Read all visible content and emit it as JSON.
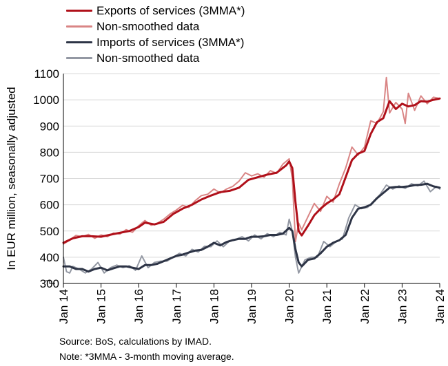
{
  "chart_data": {
    "type": "line",
    "ylabel": "In EUR million, seasonally adjusted",
    "ylim": [
      300,
      1100
    ],
    "yticks": [
      300,
      400,
      500,
      600,
      700,
      800,
      900,
      1000,
      1100
    ],
    "xticks": [
      "Jan 14",
      "Jan 15",
      "Jan 16",
      "Jan 17",
      "Jan 18",
      "Jan 19",
      "Jan 20",
      "Jan 21",
      "Jan 22",
      "Jan 23",
      "Jan 24"
    ],
    "x_start": "Jan 14",
    "x_end": "Jan 24",
    "grid": true,
    "legend_position": "top-left",
    "series": [
      {
        "name": "Exports of services (3MMA*)",
        "color": "#b0101a",
        "points": [
          [
            "2014-01",
            455
          ],
          [
            "2014-04",
            472
          ],
          [
            "2014-07",
            480
          ],
          [
            "2014-10",
            480
          ],
          [
            "2015-01",
            478
          ],
          [
            "2015-04",
            486
          ],
          [
            "2015-07",
            493
          ],
          [
            "2015-10",
            500
          ],
          [
            "2016-01",
            515
          ],
          [
            "2016-03",
            532
          ],
          [
            "2016-06",
            525
          ],
          [
            "2016-09",
            535
          ],
          [
            "2016-12",
            565
          ],
          [
            "2017-03",
            585
          ],
          [
            "2017-06",
            600
          ],
          [
            "2017-09",
            620
          ],
          [
            "2017-12",
            635
          ],
          [
            "2018-03",
            648
          ],
          [
            "2018-06",
            653
          ],
          [
            "2018-09",
            665
          ],
          [
            "2018-12",
            695
          ],
          [
            "2019-03",
            705
          ],
          [
            "2019-06",
            715
          ],
          [
            "2019-09",
            722
          ],
          [
            "2019-12",
            750
          ],
          [
            "2020-01",
            765
          ],
          [
            "2020-02",
            740
          ],
          [
            "2020-03",
            610
          ],
          [
            "2020-04",
            500
          ],
          [
            "2020-05",
            483
          ],
          [
            "2020-07",
            520
          ],
          [
            "2020-09",
            560
          ],
          [
            "2020-11",
            585
          ],
          [
            "2021-01",
            605
          ],
          [
            "2021-03",
            620
          ],
          [
            "2021-05",
            640
          ],
          [
            "2021-07",
            705
          ],
          [
            "2021-09",
            770
          ],
          [
            "2021-11",
            795
          ],
          [
            "2022-01",
            805
          ],
          [
            "2022-03",
            870
          ],
          [
            "2022-05",
            915
          ],
          [
            "2022-07",
            930
          ],
          [
            "2022-09",
            995
          ],
          [
            "2022-11",
            965
          ],
          [
            "2023-01",
            985
          ],
          [
            "2023-03",
            975
          ],
          [
            "2023-05",
            980
          ],
          [
            "2023-07",
            995
          ],
          [
            "2023-09",
            993
          ],
          [
            "2023-11",
            1000
          ],
          [
            "2024-01",
            1005
          ]
        ]
      },
      {
        "name": "Non-smoothed data",
        "color": "#d98585",
        "points": [
          [
            "2014-01",
            450
          ],
          [
            "2014-03",
            465
          ],
          [
            "2014-05",
            483
          ],
          [
            "2014-07",
            478
          ],
          [
            "2014-09",
            487
          ],
          [
            "2014-11",
            472
          ],
          [
            "2015-01",
            485
          ],
          [
            "2015-03",
            478
          ],
          [
            "2015-05",
            492
          ],
          [
            "2015-07",
            488
          ],
          [
            "2015-09",
            505
          ],
          [
            "2015-11",
            495
          ],
          [
            "2016-01",
            520
          ],
          [
            "2016-03",
            540
          ],
          [
            "2016-05",
            522
          ],
          [
            "2016-07",
            530
          ],
          [
            "2016-09",
            545
          ],
          [
            "2016-11",
            565
          ],
          [
            "2017-01",
            580
          ],
          [
            "2017-03",
            598
          ],
          [
            "2017-05",
            590
          ],
          [
            "2017-07",
            615
          ],
          [
            "2017-09",
            635
          ],
          [
            "2017-11",
            640
          ],
          [
            "2018-01",
            660
          ],
          [
            "2018-03",
            645
          ],
          [
            "2018-05",
            660
          ],
          [
            "2018-07",
            670
          ],
          [
            "2018-09",
            690
          ],
          [
            "2018-11",
            722
          ],
          [
            "2019-01",
            710
          ],
          [
            "2019-03",
            718
          ],
          [
            "2019-05",
            705
          ],
          [
            "2019-07",
            730
          ],
          [
            "2019-09",
            720
          ],
          [
            "2019-11",
            755
          ],
          [
            "2020-01",
            775
          ],
          [
            "2020-02",
            700
          ],
          [
            "2020-03",
            460
          ],
          [
            "2020-04",
            530
          ],
          [
            "2020-05",
            505
          ],
          [
            "2020-07",
            555
          ],
          [
            "2020-09",
            605
          ],
          [
            "2020-11",
            575
          ],
          [
            "2021-01",
            632
          ],
          [
            "2021-03",
            610
          ],
          [
            "2021-05",
            680
          ],
          [
            "2021-07",
            740
          ],
          [
            "2021-09",
            820
          ],
          [
            "2021-11",
            790
          ],
          [
            "2022-01",
            820
          ],
          [
            "2022-03",
            920
          ],
          [
            "2022-05",
            910
          ],
          [
            "2022-07",
            955
          ],
          [
            "2022-08",
            1085
          ],
          [
            "2022-09",
            950
          ],
          [
            "2022-11",
            990
          ],
          [
            "2023-01",
            965
          ],
          [
            "2023-02",
            910
          ],
          [
            "2023-03",
            1025
          ],
          [
            "2023-05",
            960
          ],
          [
            "2023-07",
            1015
          ],
          [
            "2023-09",
            985
          ],
          [
            "2023-11",
            1010
          ],
          [
            "2024-01",
            1005
          ]
        ]
      },
      {
        "name": "Imports of services (3MMA*)",
        "color": "#2d3446",
        "points": [
          [
            "2014-01",
            365
          ],
          [
            "2014-03",
            365
          ],
          [
            "2014-05",
            355
          ],
          [
            "2014-07",
            355
          ],
          [
            "2014-09",
            345
          ],
          [
            "2014-11",
            355
          ],
          [
            "2015-01",
            360
          ],
          [
            "2015-03",
            350
          ],
          [
            "2015-05",
            358
          ],
          [
            "2015-07",
            365
          ],
          [
            "2015-09",
            365
          ],
          [
            "2015-11",
            360
          ],
          [
            "2016-01",
            355
          ],
          [
            "2016-03",
            370
          ],
          [
            "2016-05",
            370
          ],
          [
            "2016-07",
            375
          ],
          [
            "2016-09",
            385
          ],
          [
            "2016-11",
            395
          ],
          [
            "2017-01",
            405
          ],
          [
            "2017-03",
            410
          ],
          [
            "2017-05",
            418
          ],
          [
            "2017-07",
            425
          ],
          [
            "2017-09",
            428
          ],
          [
            "2017-11",
            440
          ],
          [
            "2018-01",
            455
          ],
          [
            "2018-03",
            445
          ],
          [
            "2018-05",
            458
          ],
          [
            "2018-07",
            465
          ],
          [
            "2018-09",
            470
          ],
          [
            "2018-11",
            470
          ],
          [
            "2019-01",
            478
          ],
          [
            "2019-03",
            478
          ],
          [
            "2019-05",
            480
          ],
          [
            "2019-07",
            485
          ],
          [
            "2019-09",
            485
          ],
          [
            "2019-11",
            490
          ],
          [
            "2020-01",
            512
          ],
          [
            "2020-02",
            500
          ],
          [
            "2020-03",
            430
          ],
          [
            "2020-04",
            380
          ],
          [
            "2020-05",
            365
          ],
          [
            "2020-07",
            390
          ],
          [
            "2020-09",
            395
          ],
          [
            "2020-11",
            415
          ],
          [
            "2021-01",
            440
          ],
          [
            "2021-03",
            455
          ],
          [
            "2021-05",
            465
          ],
          [
            "2021-07",
            485
          ],
          [
            "2021-09",
            550
          ],
          [
            "2021-11",
            585
          ],
          [
            "2022-01",
            590
          ],
          [
            "2022-03",
            600
          ],
          [
            "2022-05",
            625
          ],
          [
            "2022-07",
            645
          ],
          [
            "2022-09",
            665
          ],
          [
            "2022-11",
            668
          ],
          [
            "2023-01",
            668
          ],
          [
            "2023-03",
            670
          ],
          [
            "2023-05",
            675
          ],
          [
            "2023-07",
            676
          ],
          [
            "2023-09",
            680
          ],
          [
            "2023-11",
            670
          ],
          [
            "2024-01",
            665
          ]
        ]
      },
      {
        "name": "Non-smoothed data",
        "color": "#9398a3",
        "points": [
          [
            "2014-01",
            400
          ],
          [
            "2014-02",
            345
          ],
          [
            "2014-03",
            340
          ],
          [
            "2014-04",
            365
          ],
          [
            "2014-06",
            355
          ],
          [
            "2014-08",
            340
          ],
          [
            "2014-10",
            355
          ],
          [
            "2014-12",
            380
          ],
          [
            "2015-02",
            340
          ],
          [
            "2015-04",
            360
          ],
          [
            "2015-06",
            370
          ],
          [
            "2015-08",
            360
          ],
          [
            "2015-10",
            368
          ],
          [
            "2015-12",
            350
          ],
          [
            "2016-02",
            405
          ],
          [
            "2016-04",
            360
          ],
          [
            "2016-06",
            380
          ],
          [
            "2016-08",
            385
          ],
          [
            "2016-10",
            385
          ],
          [
            "2016-12",
            400
          ],
          [
            "2017-02",
            415
          ],
          [
            "2017-04",
            405
          ],
          [
            "2017-06",
            430
          ],
          [
            "2017-08",
            420
          ],
          [
            "2017-10",
            442
          ],
          [
            "2017-12",
            440
          ],
          [
            "2018-02",
            462
          ],
          [
            "2018-04",
            440
          ],
          [
            "2018-06",
            462
          ],
          [
            "2018-08",
            468
          ],
          [
            "2018-10",
            478
          ],
          [
            "2018-12",
            462
          ],
          [
            "2019-02",
            485
          ],
          [
            "2019-04",
            470
          ],
          [
            "2019-06",
            490
          ],
          [
            "2019-08",
            478
          ],
          [
            "2019-10",
            495
          ],
          [
            "2019-12",
            485
          ],
          [
            "2020-01",
            545
          ],
          [
            "2020-02",
            500
          ],
          [
            "2020-03",
            400
          ],
          [
            "2020-04",
            340
          ],
          [
            "2020-06",
            390
          ],
          [
            "2020-08",
            400
          ],
          [
            "2020-10",
            400
          ],
          [
            "2020-12",
            460
          ],
          [
            "2021-02",
            440
          ],
          [
            "2021-04",
            460
          ],
          [
            "2021-06",
            470
          ],
          [
            "2021-08",
            550
          ],
          [
            "2021-10",
            600
          ],
          [
            "2021-12",
            585
          ],
          [
            "2022-02",
            590
          ],
          [
            "2022-04",
            615
          ],
          [
            "2022-06",
            640
          ],
          [
            "2022-08",
            675
          ],
          [
            "2022-10",
            660
          ],
          [
            "2022-12",
            672
          ],
          [
            "2023-02",
            662
          ],
          [
            "2023-04",
            680
          ],
          [
            "2023-06",
            672
          ],
          [
            "2023-08",
            690
          ],
          [
            "2023-10",
            650
          ],
          [
            "2023-12",
            670
          ],
          [
            "2024-01",
            660
          ]
        ]
      }
    ]
  },
  "notes": {
    "source": "Source: BoS, calculations by IMAD.",
    "note": "Note: *3MMA - 3-month moving average."
  }
}
